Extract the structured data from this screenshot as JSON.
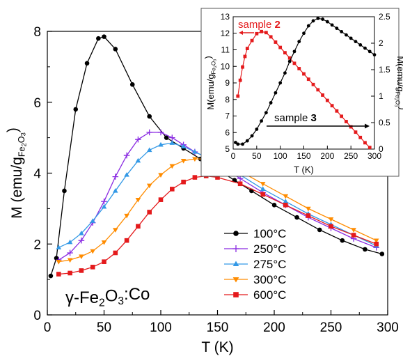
{
  "chart_data": [
    {
      "type": "line",
      "xlabel": "T (K)",
      "ylabel": "M (emu/g",
      "ylabel_sub": "Fe2O3",
      "xlim": [
        0,
        300
      ],
      "ylim": [
        0,
        8
      ],
      "xticks": [
        0,
        50,
        100,
        150,
        200,
        250,
        300
      ],
      "yticks": [
        0,
        2,
        4,
        6,
        8
      ],
      "annotation": "γ-Fe2O3:Co",
      "legend_position": "bottom-right",
      "series": [
        {
          "name": "100°C",
          "color": "#000000",
          "marker": "circle",
          "x": [
            3,
            8,
            15,
            25,
            35,
            45,
            50,
            60,
            75,
            90,
            105,
            120,
            135,
            150,
            165,
            180,
            200,
            220,
            240,
            260,
            280,
            295
          ],
          "y": [
            1.1,
            1.6,
            3.5,
            5.8,
            7.1,
            7.8,
            7.85,
            7.5,
            6.5,
            5.6,
            5.0,
            4.7,
            4.4,
            4.1,
            3.8,
            3.5,
            3.1,
            2.75,
            2.4,
            2.1,
            1.85,
            1.72
          ]
        },
        {
          "name": "250°C",
          "color": "#8a2be2",
          "marker": "plus",
          "x": [
            10,
            20,
            30,
            40,
            50,
            60,
            70,
            80,
            90,
            100,
            110,
            120,
            130,
            140,
            150,
            170,
            190,
            210,
            230,
            250,
            270,
            290
          ],
          "y": [
            1.55,
            1.75,
            2.1,
            2.6,
            3.2,
            3.9,
            4.5,
            4.95,
            5.15,
            5.15,
            5.0,
            4.8,
            4.6,
            4.45,
            4.25,
            3.85,
            3.45,
            3.1,
            2.75,
            2.45,
            2.15,
            1.9
          ]
        },
        {
          "name": "275°C",
          "color": "#3399e6",
          "marker": "triangle-up",
          "x": [
            10,
            20,
            30,
            40,
            50,
            60,
            70,
            80,
            90,
            100,
            110,
            120,
            130,
            140,
            150,
            170,
            190,
            210,
            230,
            250,
            270,
            290
          ],
          "y": [
            1.9,
            2.05,
            2.3,
            2.65,
            3.05,
            3.5,
            3.95,
            4.35,
            4.65,
            4.8,
            4.85,
            4.75,
            4.6,
            4.45,
            4.3,
            3.95,
            3.55,
            3.2,
            2.85,
            2.55,
            2.25,
            1.95
          ]
        },
        {
          "name": "300°C",
          "color": "#ff8c00",
          "marker": "triangle-down",
          "x": [
            10,
            20,
            30,
            40,
            50,
            60,
            70,
            80,
            90,
            100,
            110,
            120,
            130,
            140,
            150,
            170,
            190,
            210,
            230,
            250,
            270,
            290
          ],
          "y": [
            1.5,
            1.55,
            1.65,
            1.8,
            2.05,
            2.4,
            2.8,
            3.25,
            3.65,
            3.95,
            4.2,
            4.35,
            4.4,
            4.4,
            4.3,
            4.05,
            3.7,
            3.35,
            3.0,
            2.7,
            2.4,
            2.1
          ]
        },
        {
          "name": "600°C",
          "color": "#e41a1c",
          "marker": "square",
          "x": [
            10,
            20,
            30,
            40,
            50,
            60,
            70,
            80,
            90,
            100,
            110,
            120,
            130,
            140,
            150,
            170,
            190,
            210,
            230,
            250,
            270,
            290
          ],
          "y": [
            1.15,
            1.18,
            1.25,
            1.35,
            1.5,
            1.75,
            2.1,
            2.5,
            2.9,
            3.25,
            3.55,
            3.75,
            3.88,
            3.92,
            3.88,
            3.7,
            3.4,
            3.1,
            2.8,
            2.5,
            2.25,
            2.0
          ]
        }
      ]
    },
    {
      "type": "line",
      "xlabel": "T (K)",
      "ylabel_left": "M(emu/g",
      "ylabel_left_sub": "Fe2O3",
      "ylabel_right": "M(emu/g",
      "ylabel_right_sub": "Fe2O3",
      "xlim": [
        0,
        300
      ],
      "ylim_left": [
        5,
        13
      ],
      "ylim_right": [
        0,
        2.5
      ],
      "xticks": [
        0,
        50,
        100,
        150,
        200,
        250,
        300
      ],
      "yticks_left": [
        5,
        6,
        7,
        8,
        9,
        10,
        11,
        12,
        13
      ],
      "yticks_right": [
        0,
        0.5,
        1,
        1.5,
        2,
        2.5
      ],
      "legend_position": "top-right inset",
      "series": [
        {
          "name": "sample 2",
          "name_prefix": "sample ",
          "name_num": "2",
          "color": "#e41a1c",
          "marker": "square",
          "axis": "right",
          "x": [
            10,
            15,
            20,
            25,
            30,
            40,
            50,
            60,
            70,
            80,
            90,
            100,
            110,
            120,
            130,
            140,
            150,
            160,
            170,
            180,
            190,
            200,
            210,
            220,
            230,
            240,
            250,
            260,
            270,
            280,
            290
          ],
          "y": [
            1.0,
            1.3,
            1.55,
            1.75,
            1.9,
            2.05,
            2.18,
            2.22,
            2.2,
            2.12,
            2.02,
            1.92,
            1.82,
            1.72,
            1.62,
            1.52,
            1.42,
            1.32,
            1.22,
            1.12,
            1.02,
            0.92,
            0.82,
            0.72,
            0.62,
            0.52,
            0.42,
            0.32,
            0.22,
            0.12,
            0.03
          ]
        },
        {
          "name": "sample 3",
          "name_prefix": "sample ",
          "name_num": "3",
          "color": "#000000",
          "marker": "circle",
          "axis": "left",
          "x": [
            5,
            10,
            20,
            30,
            40,
            50,
            60,
            70,
            80,
            90,
            100,
            110,
            120,
            130,
            140,
            150,
            160,
            170,
            180,
            190,
            200,
            210,
            220,
            230,
            240,
            250,
            260,
            270,
            280,
            290,
            300
          ],
          "y": [
            5.4,
            5.3,
            5.3,
            5.5,
            5.8,
            6.2,
            6.7,
            7.2,
            7.8,
            8.4,
            9.0,
            9.6,
            10.3,
            10.9,
            11.5,
            12.0,
            12.45,
            12.75,
            12.9,
            12.85,
            12.7,
            12.5,
            12.3,
            12.1,
            11.9,
            11.7,
            11.5,
            11.3,
            11.1,
            10.9,
            10.7
          ]
        }
      ]
    }
  ]
}
